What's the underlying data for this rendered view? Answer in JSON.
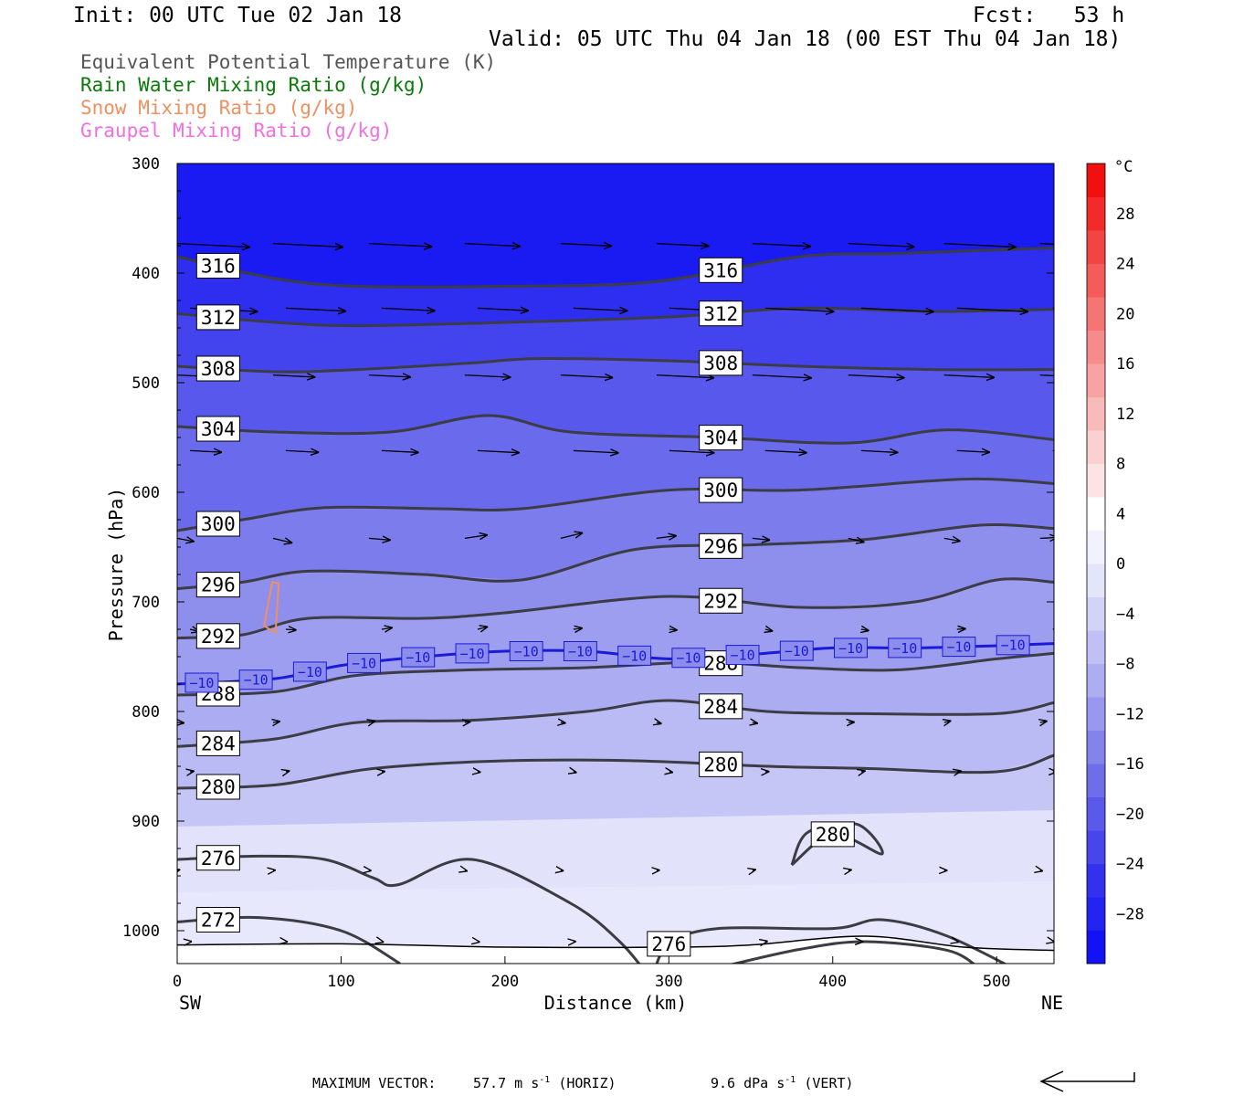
{
  "header": {
    "init": "Init: 00 UTC Tue 02 Jan 18",
    "fcst": "Fcst:   53 h",
    "valid": "Valid: 05 UTC Thu 04 Jan 18 (00 EST Thu 04 Jan 18)"
  },
  "legend": [
    {
      "label": "Equivalent Potential Temperature (K)",
      "color": "#555555"
    },
    {
      "label": "Rain Water Mixing Ratio (g/kg)",
      "color": "#0a7a0a"
    },
    {
      "label": "Snow Mixing Ratio (g/kg)",
      "color": "#f09060"
    },
    {
      "label": "Graupel Mixing Ratio (g/kg)",
      "color": "#f070e0"
    }
  ],
  "footer": {
    "prefix": "MAXIMUM VECTOR:",
    "horiz_value": "57.7 m s",
    "horiz_tail": " (HORIZ)",
    "vert_value": "9.6 dPa s",
    "vert_tail": " (VERT)",
    "exp": "-1"
  },
  "chart_data": {
    "type": "cross-section",
    "xlabel": "Distance (km)",
    "ylabel": "Pressure (hPa)",
    "xlim": [
      0,
      535
    ],
    "ylim": [
      1030,
      300
    ],
    "x_ticks": [
      "0",
      "100",
      "200",
      "300",
      "400",
      "500"
    ],
    "y_ticks": [
      "300",
      "400",
      "500",
      "600",
      "700",
      "800",
      "900",
      "1000"
    ],
    "endpoints": {
      "left": "SW",
      "right": "NE"
    },
    "colorbar": {
      "unit": "°C",
      "labels": [
        "28",
        "24",
        "20",
        "16",
        "12",
        "8",
        "4",
        "0",
        "−4",
        "−8",
        "−12",
        "−16",
        "−20",
        "−24",
        "−28"
      ],
      "colors": [
        "#1212f5",
        "#2323f2",
        "#3232ee",
        "#4646ec",
        "#5a5aea",
        "#6e6eea",
        "#8383ec",
        "#9898ef",
        "#adadf2",
        "#c0c0f5",
        "#d3d3f8",
        "#e4e4fb",
        "#f2f2fe",
        "#ffffff",
        "#fde4e4",
        "#fbd0d0",
        "#f9baba",
        "#f7a3a3",
        "#f68b8b",
        "#f57474",
        "#f45c5c",
        "#f34444",
        "#f22a2a",
        "#f11010"
      ]
    },
    "isotherm_minus10": {
      "label": "−10",
      "x": [
        0,
        60,
        100,
        150,
        200,
        250,
        300,
        350,
        400,
        450,
        500,
        535
      ],
      "p": [
        775,
        770,
        758,
        750,
        745,
        745,
        752,
        748,
        742,
        742,
        740,
        738
      ]
    },
    "theta_e_contours": [
      {
        "label": "316",
        "x": [
          0,
          60,
          110,
          200,
          290,
          380,
          440,
          535
        ],
        "p": [
          385,
          405,
          412,
          412,
          408,
          385,
          382,
          377
        ]
      },
      {
        "label": "312",
        "x": [
          0,
          60,
          110,
          200,
          300,
          380,
          460,
          535
        ],
        "p": [
          437,
          445,
          448,
          445,
          440,
          432,
          435,
          433
        ]
      },
      {
        "label": "308",
        "x": [
          0,
          60,
          110,
          180,
          220,
          300,
          380,
          460,
          535
        ],
        "p": [
          485,
          490,
          488,
          482,
          478,
          480,
          485,
          488,
          488
        ]
      },
      {
        "label": "304",
        "x": [
          0,
          60,
          130,
          190,
          240,
          330,
          410,
          470,
          535
        ],
        "p": [
          540,
          545,
          545,
          530,
          545,
          550,
          555,
          543,
          552
        ]
      },
      {
        "label": "300",
        "x": [
          0,
          40,
          90,
          160,
          210,
          300,
          380,
          480,
          535
        ],
        "p": [
          635,
          625,
          614,
          615,
          615,
          598,
          598,
          588,
          592
        ]
      },
      {
        "label": "296",
        "x": [
          0,
          40,
          80,
          150,
          210,
          280,
          350,
          420,
          490,
          535
        ],
        "p": [
          688,
          682,
          672,
          675,
          680,
          652,
          648,
          643,
          630,
          633
        ]
      },
      {
        "label": "292",
        "x": [
          0,
          40,
          80,
          150,
          200,
          300,
          380,
          450,
          500,
          535
        ],
        "p": [
          733,
          730,
          715,
          715,
          710,
          695,
          705,
          700,
          680,
          682
        ]
      },
      {
        "label": "288",
        "x": [
          0,
          60,
          110,
          180,
          250,
          320,
          380,
          440,
          500,
          535
        ],
        "p": [
          785,
          782,
          767,
          762,
          760,
          755,
          760,
          762,
          752,
          747
        ]
      },
      {
        "label": "284",
        "x": [
          0,
          60,
          110,
          180,
          250,
          300,
          360,
          420,
          500,
          535
        ],
        "p": [
          832,
          825,
          810,
          808,
          800,
          790,
          800,
          802,
          802,
          792
        ]
      },
      {
        "label": "280",
        "x": [
          0,
          60,
          120,
          200,
          280,
          360,
          420,
          500,
          535
        ],
        "p": [
          870,
          867,
          852,
          845,
          845,
          850,
          852,
          855,
          840
        ]
      },
      {
        "label": "280",
        "x": [
          375,
          400,
          430,
          415,
          385,
          375
        ],
        "p": [
          940,
          912,
          930,
          903,
          910,
          940
        ]
      },
      {
        "label": "276",
        "x": [
          0,
          50,
          90,
          120,
          135,
          180,
          240,
          270,
          288
        ],
        "p": [
          935,
          932,
          935,
          952,
          958,
          935,
          975,
          1010,
          1042
        ]
      },
      {
        "label": "276",
        "x": [
          290,
          300,
          330,
          400,
          430,
          470,
          520
        ],
        "p": [
          1042,
          1012,
          998,
          998,
          990,
          1005,
          1042
        ]
      },
      {
        "label": "272",
        "x": [
          0,
          50,
          100,
          136
        ],
        "p": [
          992,
          988,
          1000,
          1030
        ]
      },
      {
        "label": "",
        "x": [
          335,
          380,
          420,
          470,
          490
        ],
        "p": [
          1032,
          1017,
          1010,
          1018,
          1035
        ]
      }
    ],
    "surface": {
      "x": [
        0,
        100,
        200,
        300,
        350,
        420,
        480,
        535
      ],
      "p": [
        1013,
        1012,
        1015,
        1015,
        1013,
        1005,
        1015,
        1018
      ]
    }
  }
}
